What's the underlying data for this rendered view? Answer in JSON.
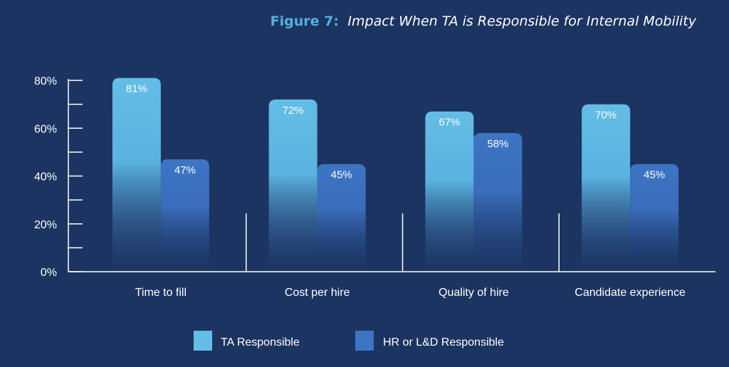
{
  "chart_data": {
    "type": "bar",
    "title_prefix": "Figure 7:",
    "title": "Impact When TA is Responsible for Internal Mobility",
    "categories": [
      "Time to fill",
      "Cost per hire",
      "Quality of hire",
      "Candidate experience"
    ],
    "series": [
      {
        "name": "TA Responsible",
        "values": [
          81,
          72,
          67,
          70
        ],
        "labels": [
          "81%",
          "72%",
          "67%",
          "70%"
        ]
      },
      {
        "name": "HR or L&D Responsible",
        "values": [
          47,
          45,
          58,
          45
        ],
        "labels": [
          "47%",
          "45%",
          "58%",
          "45%"
        ]
      }
    ],
    "ylim": [
      0,
      80
    ],
    "yticks": [
      0,
      20,
      40,
      60,
      80
    ],
    "ytick_labels": [
      "0%",
      "20%",
      "40%",
      "60%",
      "80%"
    ],
    "legend_position": "bottom",
    "grid": false,
    "colors": {
      "background": "#1c3461",
      "title_prefix": "#4fb3e3",
      "title": "#ffffff",
      "ta": "#63bde6",
      "hr": "#3d74c4",
      "axis": "#ffffff"
    }
  }
}
